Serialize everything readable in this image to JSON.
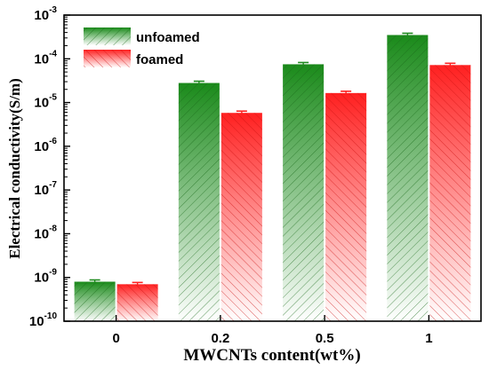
{
  "chart_data": {
    "type": "bar",
    "title": "",
    "xlabel": "MWCNTs content(wt%)",
    "ylabel": "Electrical conductivity(S/m)",
    "yscale": "log",
    "ylim": [
      1e-10,
      0.001
    ],
    "categories": [
      "0",
      "0.2",
      "0.5",
      "1"
    ],
    "yticks": [
      {
        "base": "10",
        "exp": "-10"
      },
      {
        "base": "10",
        "exp": "-9"
      },
      {
        "base": "10",
        "exp": "-8"
      },
      {
        "base": "10",
        "exp": "-7"
      },
      {
        "base": "10",
        "exp": "-6"
      },
      {
        "base": "10",
        "exp": "-5"
      },
      {
        "base": "10",
        "exp": "-4"
      },
      {
        "base": "10",
        "exp": "-3"
      }
    ],
    "legend_position": "top-left",
    "grid": false,
    "series": [
      {
        "name": "unfoamed",
        "color": "#1e8a1e",
        "values": [
          8e-10,
          2.8e-05,
          7.5e-05,
          0.00035
        ]
      },
      {
        "name": "foamed",
        "color": "#ff2020",
        "values": [
          7e-10,
          5.8e-06,
          1.65e-05,
          7.2e-05
        ]
      }
    ]
  }
}
